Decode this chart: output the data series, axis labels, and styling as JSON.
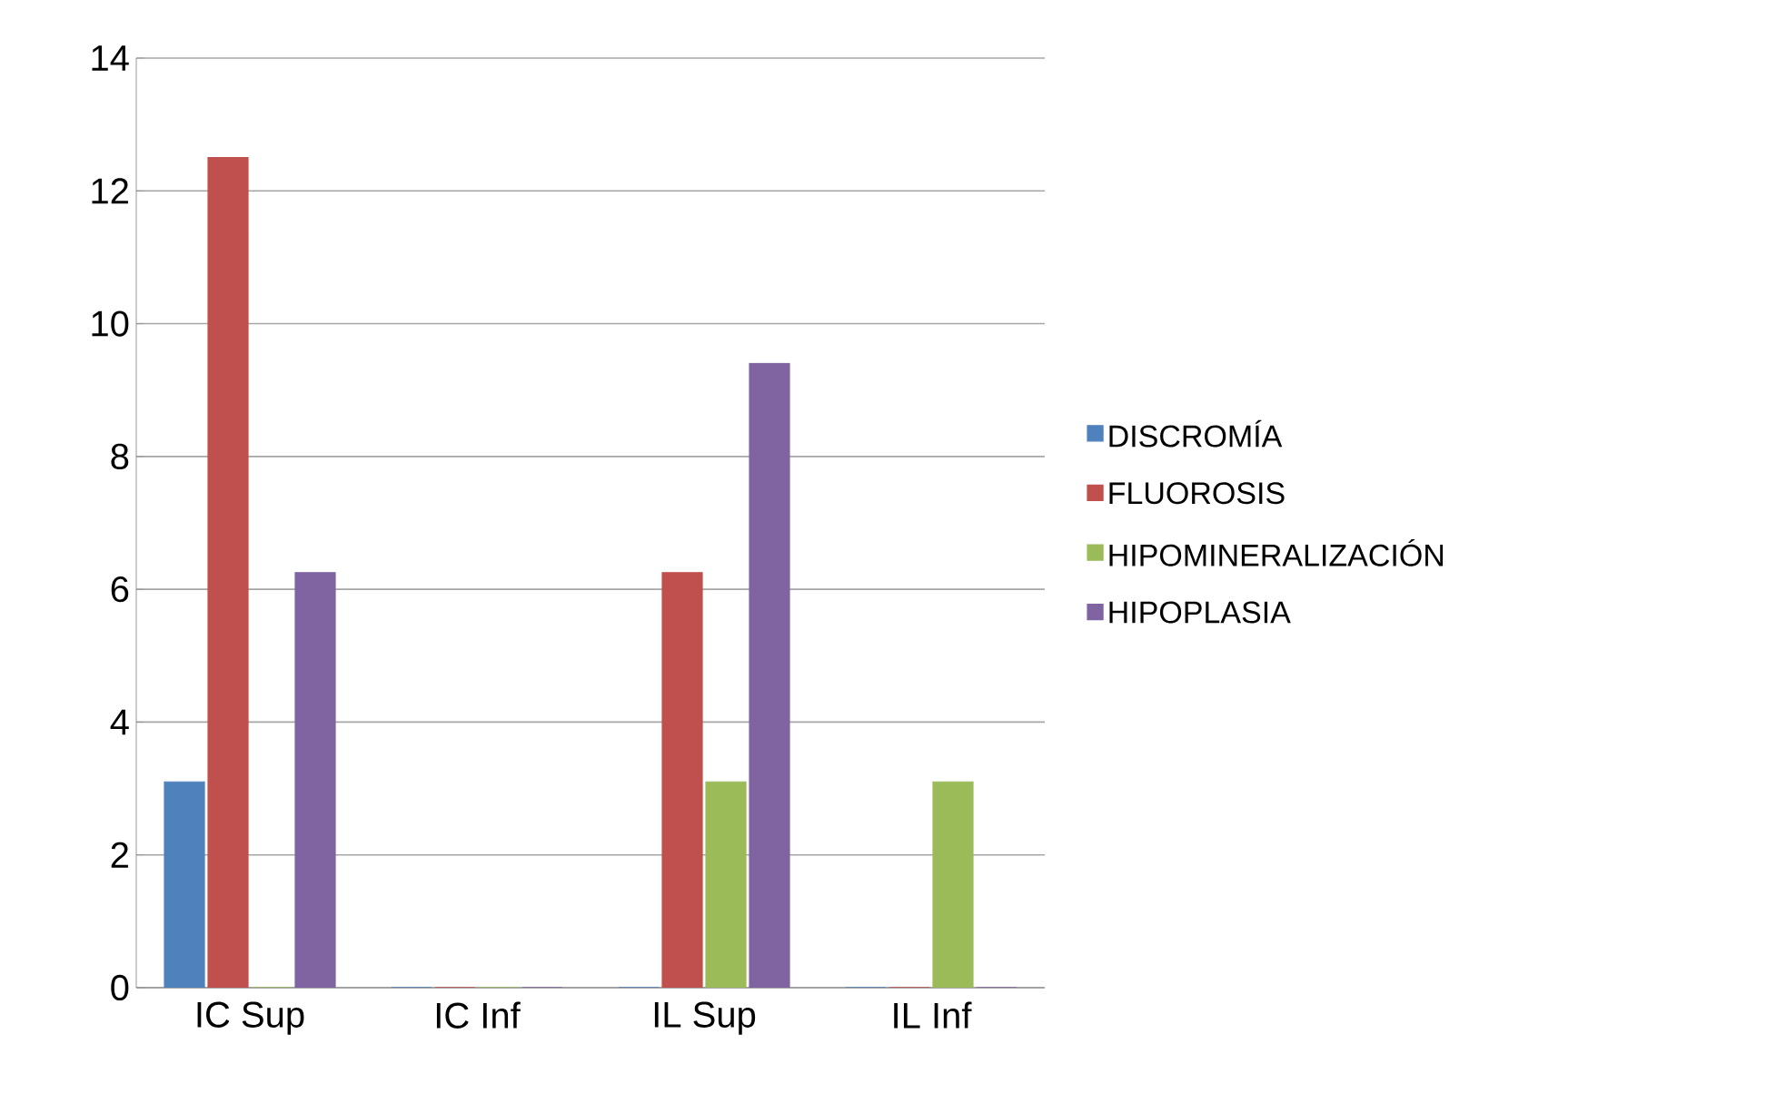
{
  "chart_data": {
    "type": "bar",
    "categories": [
      "IC Sup",
      "IC Inf",
      "IL Sup",
      "IL Inf"
    ],
    "series": [
      {
        "name": "DISCROMÍA",
        "color": "#4f81bd",
        "values": [
          3.1,
          0,
          0,
          0
        ]
      },
      {
        "name": "FLUOROSIS",
        "color": "#c0504d",
        "values": [
          12.5,
          0,
          6.25,
          0
        ]
      },
      {
        "name": "HIPOMINERALIZACIÓN",
        "color": "#9bbb59",
        "values": [
          0,
          0,
          3.1,
          3.1
        ]
      },
      {
        "name": "HIPOPLASIA",
        "color": "#8064a2",
        "values": [
          6.25,
          0,
          9.4,
          0
        ]
      }
    ],
    "ylim": [
      0,
      14
    ],
    "yticks": [
      0,
      2,
      4,
      6,
      8,
      10,
      12,
      14
    ],
    "grid": "y",
    "legend": "right"
  }
}
